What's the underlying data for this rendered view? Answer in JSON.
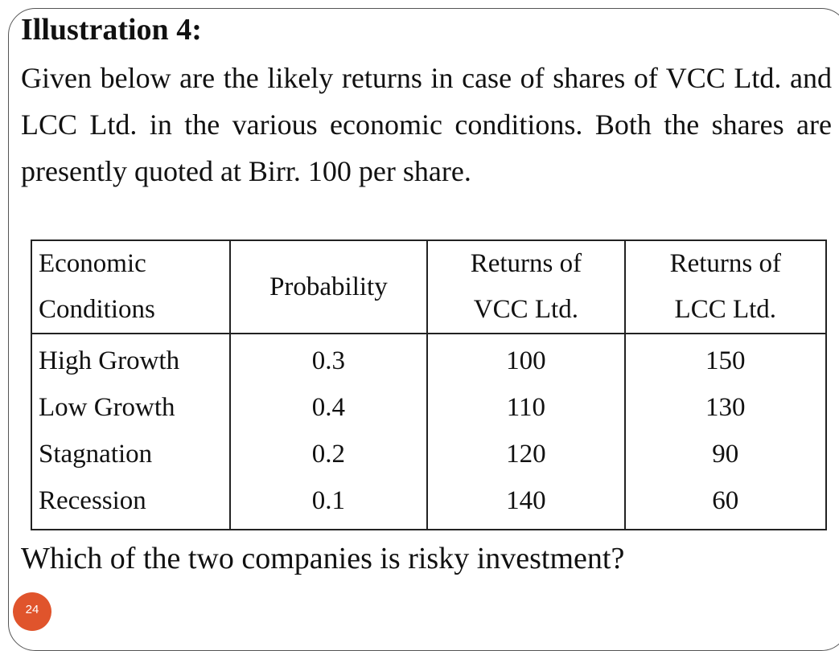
{
  "slide": {
    "title": "Illustration 4:",
    "paragraph": "Given below are the likely returns in case of shares of VCC Ltd. and LCC Ltd. in the various economic conditions. Both the shares are presently quoted at Birr. 100 per share.",
    "table": {
      "headers": {
        "col1_line1": "Economic",
        "col1_line2": "Conditions",
        "col2": "Probability",
        "col3_line1": "Returns of",
        "col3_line2": "VCC Ltd.",
        "col4_line1": "Returns of",
        "col4_line2": "LCC Ltd."
      },
      "rows": [
        {
          "condition": "High Growth",
          "probability": "0.3",
          "vcc": "100",
          "lcc": "150"
        },
        {
          "condition": "Low Growth",
          "probability": "0.4",
          "vcc": "110",
          "lcc": "130"
        },
        {
          "condition": "Stagnation",
          "probability": "0.2",
          "vcc": "120",
          "lcc": "90"
        },
        {
          "condition": "Recession",
          "probability": "0.1",
          "vcc": "140",
          "lcc": "60"
        }
      ]
    },
    "question": "Which of the two companies is risky investment?",
    "page_number": "24",
    "colors": {
      "page_badge": "#e0542c",
      "frame": "#555555"
    }
  }
}
